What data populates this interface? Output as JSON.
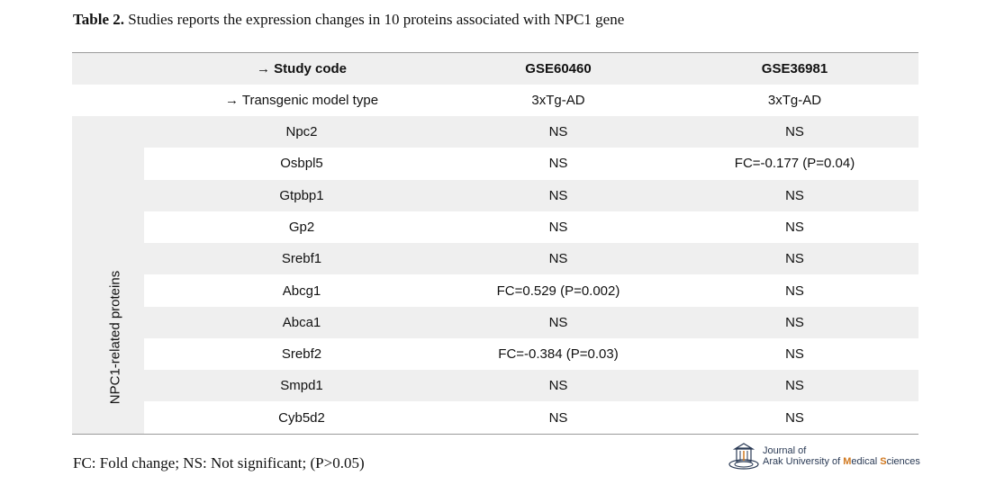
{
  "caption": {
    "label": "Table 2.",
    "text": "Studies reports the expression changes in 10 proteins associated with NPC1 gene"
  },
  "table": {
    "header": {
      "label": "→ Study code",
      "col1": "GSE60460",
      "col2": "GSE36981"
    },
    "model_row": {
      "label": "→ Transgenic model type",
      "col1": "3xTg-AD",
      "col2": "3xTg-AD"
    },
    "group_label": "NPC1-related proteins",
    "rows": [
      {
        "protein": "Npc2",
        "gse60460": "NS",
        "gse36981": "NS"
      },
      {
        "protein": "Osbpl5",
        "gse60460": "NS",
        "gse36981": "FC=-0.177 (P=0.04)"
      },
      {
        "protein": "Gtpbp1",
        "gse60460": "NS",
        "gse36981": "NS"
      },
      {
        "protein": "Gp2",
        "gse60460": "NS",
        "gse36981": "NS"
      },
      {
        "protein": "Srebf1",
        "gse60460": "NS",
        "gse36981": "NS"
      },
      {
        "protein": "Abcg1",
        "gse60460": "FC=0.529 (P=0.002)",
        "gse36981": "NS"
      },
      {
        "protein": "Abca1",
        "gse60460": "NS",
        "gse36981": "NS"
      },
      {
        "protein": "Srebf2",
        "gse60460": "FC=-0.384 (P=0.03)",
        "gse36981": "NS"
      },
      {
        "protein": "Smpd1",
        "gse60460": "NS",
        "gse36981": "NS"
      },
      {
        "protein": "Cyb5d2",
        "gse60460": "NS",
        "gse36981": "NS"
      }
    ]
  },
  "footnote": "FC: Fold change; NS: Not significant; (P>0.05)",
  "logo": {
    "icon": "journal-emblem-icon",
    "line1": "Journal of",
    "line2_a": "Arak University of ",
    "line2_b": "M",
    "line2_c": "edical ",
    "line2_d": "S",
    "line2_e": "ciences"
  },
  "colors": {
    "shade": "#efefef",
    "rule": "#9a9a9a",
    "logo_text": "#2a3a55",
    "logo_accent": "#d1781e"
  }
}
